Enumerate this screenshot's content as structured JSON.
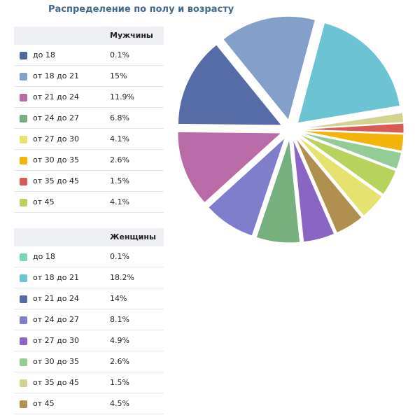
{
  "title": "Распределение по полу и возрасту",
  "men": {
    "header": "Мужчины",
    "rows": [
      {
        "label": "до 18",
        "value": "0.1%",
        "color": "#4f6a9a"
      },
      {
        "label": "от 18 до 21",
        "value": "15%",
        "color": "#83a0cb"
      },
      {
        "label": "от 21 до 24",
        "value": "11.9%",
        "color": "#b86ba6"
      },
      {
        "label": "от 24 до 27",
        "value": "6.8%",
        "color": "#75b07e"
      },
      {
        "label": "от 27 до 30",
        "value": "4.1%",
        "color": "#e6e26f"
      },
      {
        "label": "от 30 до 35",
        "value": "2.6%",
        "color": "#f2b30a"
      },
      {
        "label": "от 35 до 45",
        "value": "1.5%",
        "color": "#d95b56"
      },
      {
        "label": "от 45",
        "value": "4.1%",
        "color": "#b7d35e"
      }
    ]
  },
  "women": {
    "header": "Женщины",
    "rows": [
      {
        "label": "до 18",
        "value": "0.1%",
        "color": "#7ad6b4"
      },
      {
        "label": "от 18 до 21",
        "value": "18.2%",
        "color": "#6cc3d4"
      },
      {
        "label": "от 21 до 24",
        "value": "14%",
        "color": "#566ca6"
      },
      {
        "label": "от 24 до 27",
        "value": "8.1%",
        "color": "#7f7dcc"
      },
      {
        "label": "от 27 до 30",
        "value": "4.9%",
        "color": "#8965c6"
      },
      {
        "label": "от 30 до 35",
        "value": "2.6%",
        "color": "#93cd95"
      },
      {
        "label": "от 35 до 45",
        "value": "1.5%",
        "color": "#d2d38e"
      },
      {
        "label": "от 45",
        "value": "4.5%",
        "color": "#b08f4f"
      }
    ]
  },
  "chart_data": {
    "type": "pie",
    "series": [
      {
        "name": "Мужчины",
        "categories": [
          "до 18",
          "от 18 до 21",
          "от 21 до 24",
          "от 24 до 27",
          "от 27 до 30",
          "от 30 до 35",
          "от 35 до 45",
          "от 45"
        ],
        "values": [
          0.1,
          15,
          11.9,
          6.8,
          4.1,
          2.6,
          1.5,
          4.1
        ]
      },
      {
        "name": "Женщины",
        "categories": [
          "до 18",
          "от 18 до 21",
          "от 21 до 24",
          "от 24 до 27",
          "от 27 до 30",
          "от 30 до 35",
          "от 35 до 45",
          "от 45"
        ],
        "values": [
          0.1,
          18.2,
          14,
          8.1,
          4.9,
          2.6,
          1.5,
          4.5
        ]
      }
    ],
    "slices": [
      {
        "series": "Женщины",
        "label": "от 18 до 21",
        "value": 18.2,
        "color": "#6cc3d4"
      },
      {
        "series": "Мужчины",
        "label": "до 18",
        "value": 0.1,
        "color": "#4f6a9a"
      },
      {
        "series": "Женщины",
        "label": "до 18",
        "value": 0.1,
        "color": "#7ad6b4"
      },
      {
        "series": "Женщины",
        "label": "от 35 до 45",
        "value": 1.5,
        "color": "#d2d38e"
      },
      {
        "series": "Мужчины",
        "label": "от 35 до 45",
        "value": 1.5,
        "color": "#d95b56"
      },
      {
        "series": "Мужчины",
        "label": "от 30 до 35",
        "value": 2.6,
        "color": "#f2b30a"
      },
      {
        "series": "Женщины",
        "label": "от 30 до 35",
        "value": 2.6,
        "color": "#93cd95"
      },
      {
        "series": "Мужчины",
        "label": "от 45",
        "value": 4.1,
        "color": "#b7d35e"
      },
      {
        "series": "Мужчины",
        "label": "от 27 до 30",
        "value": 4.1,
        "color": "#e6e26f"
      },
      {
        "series": "Женщины",
        "label": "от 45",
        "value": 4.5,
        "color": "#b08f4f"
      },
      {
        "series": "Женщины",
        "label": "от 27 до 30",
        "value": 4.9,
        "color": "#8965c6"
      },
      {
        "series": "Мужчины",
        "label": "от 24 до 27",
        "value": 6.8,
        "color": "#75b07e"
      },
      {
        "series": "Женщины",
        "label": "от 24 до 27",
        "value": 8.1,
        "color": "#7f7dcc"
      },
      {
        "series": "Мужчины",
        "label": "от 21 до 24",
        "value": 11.9,
        "color": "#b86ba6"
      },
      {
        "series": "Женщины",
        "label": "от 21 до 24",
        "value": 14,
        "color": "#566ca6"
      },
      {
        "series": "Мужчины",
        "label": "от 18 до 21",
        "value": 15,
        "color": "#83a0cb"
      }
    ],
    "title": "Распределение по полу и возрасту",
    "legend": "left"
  }
}
